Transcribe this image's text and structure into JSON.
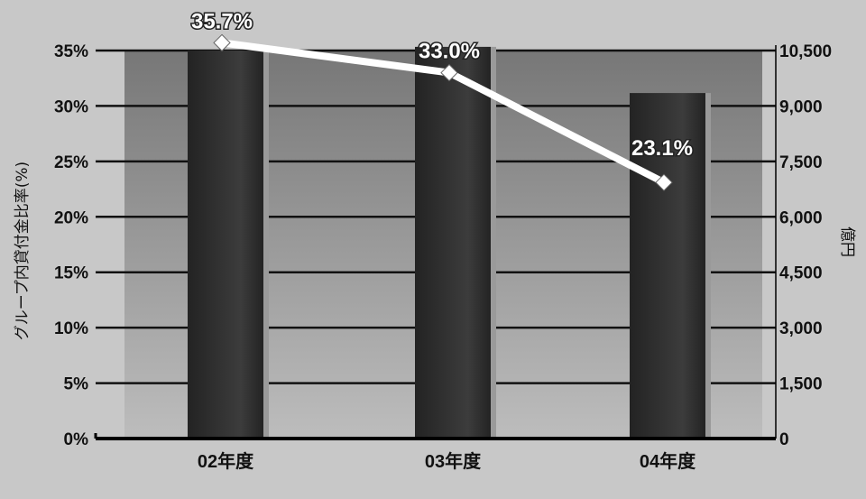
{
  "chart_data": {
    "type": "bar",
    "categories": [
      "02年度",
      "03年度",
      "04年度"
    ],
    "series": [
      {
        "type": "bar",
        "axis": "right",
        "values": [
          10500,
          10600,
          9350
        ]
      },
      {
        "type": "line",
        "axis": "left",
        "values": [
          35.7,
          33.0,
          23.1
        ],
        "labels": [
          "35.7%",
          "33.0%",
          "23.1%"
        ]
      }
    ],
    "y_left": {
      "label": "グループ内貸付金比率(%)",
      "ticks": [
        "0%",
        "5%",
        "10%",
        "15%",
        "20%",
        "25%",
        "30%",
        "35%"
      ],
      "ylim": [
        0,
        35
      ]
    },
    "y_right": {
      "label": "億円",
      "ticks": [
        "0",
        "1,500",
        "3,000",
        "4,500",
        "6,000",
        "7,500",
        "9,000",
        "10,500"
      ],
      "ylim": [
        0,
        10500
      ]
    },
    "grid": true,
    "colors": {
      "outer_bg": "#c8c8c8",
      "plot_bg_top": "#777777",
      "plot_bg_bottom": "#bdbdbd",
      "bar_dark": "#232323",
      "bar_light": "#3c3c3c",
      "bar_edge": "#9a9a9a",
      "line": "#ffffff",
      "gridline": "#111111"
    }
  }
}
